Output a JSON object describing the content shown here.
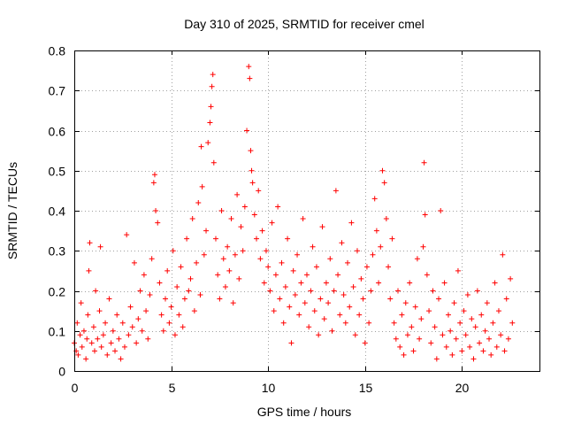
{
  "chart_data": {
    "type": "scatter",
    "title": "Day 310 of 2025, SRMTID for receiver cmel",
    "xlabel": "GPS time / hours",
    "ylabel": "SRMTID / TECUs",
    "xlim": [
      0,
      24
    ],
    "ylim": [
      0,
      0.8
    ],
    "xticks": [
      0,
      5,
      10,
      15,
      20
    ],
    "xtick_labels": [
      "0",
      "5",
      "10",
      "15",
      "20"
    ],
    "yticks": [
      0,
      0.1,
      0.2,
      0.3,
      0.4,
      0.5,
      0.6,
      0.7,
      0.8
    ],
    "ytick_labels": [
      "0",
      "0.1",
      "0.2",
      "0.3",
      "0.4",
      "0.5",
      "0.6",
      "0.7",
      "0.8"
    ],
    "grid": true,
    "marker": "plus",
    "marker_color": "#ff0000",
    "series": [
      {
        "name": "SRMTID",
        "points": [
          [
            0.0,
            0.07
          ],
          [
            0.1,
            0.05
          ],
          [
            0.15,
            0.12
          ],
          [
            0.2,
            0.04
          ],
          [
            0.3,
            0.09
          ],
          [
            0.35,
            0.17
          ],
          [
            0.4,
            0.06
          ],
          [
            0.5,
            0.1
          ],
          [
            0.6,
            0.03
          ],
          [
            0.65,
            0.08
          ],
          [
            0.7,
            0.14
          ],
          [
            0.75,
            0.25
          ],
          [
            0.8,
            0.32
          ],
          [
            0.9,
            0.07
          ],
          [
            1.0,
            0.11
          ],
          [
            1.05,
            0.05
          ],
          [
            1.1,
            0.2
          ],
          [
            1.2,
            0.08
          ],
          [
            1.3,
            0.15
          ],
          [
            1.35,
            0.31
          ],
          [
            1.4,
            0.06
          ],
          [
            1.5,
            0.09
          ],
          [
            1.6,
            0.12
          ],
          [
            1.7,
            0.04
          ],
          [
            1.8,
            0.18
          ],
          [
            1.9,
            0.07
          ],
          [
            2.0,
            0.1
          ],
          [
            2.1,
            0.05
          ],
          [
            2.2,
            0.14
          ],
          [
            2.3,
            0.08
          ],
          [
            2.4,
            0.03
          ],
          [
            2.5,
            0.12
          ],
          [
            2.6,
            0.06
          ],
          [
            2.7,
            0.34
          ],
          [
            2.8,
            0.09
          ],
          [
            2.9,
            0.16
          ],
          [
            3.0,
            0.11
          ],
          [
            3.1,
            0.27
          ],
          [
            3.2,
            0.07
          ],
          [
            3.3,
            0.13
          ],
          [
            3.4,
            0.2
          ],
          [
            3.5,
            0.1
          ],
          [
            3.6,
            0.24
          ],
          [
            3.7,
            0.15
          ],
          [
            3.8,
            0.08
          ],
          [
            3.9,
            0.19
          ],
          [
            4.0,
            0.28
          ],
          [
            4.1,
            0.47
          ],
          [
            4.15,
            0.49
          ],
          [
            4.2,
            0.4
          ],
          [
            4.3,
            0.37
          ],
          [
            4.4,
            0.22
          ],
          [
            4.5,
            0.14
          ],
          [
            4.6,
            0.1
          ],
          [
            4.7,
            0.18
          ],
          [
            4.8,
            0.25
          ],
          [
            4.9,
            0.12
          ],
          [
            5.0,
            0.16
          ],
          [
            5.1,
            0.3
          ],
          [
            5.2,
            0.09
          ],
          [
            5.3,
            0.21
          ],
          [
            5.4,
            0.14
          ],
          [
            5.5,
            0.26
          ],
          [
            5.6,
            0.11
          ],
          [
            5.7,
            0.18
          ],
          [
            5.8,
            0.33
          ],
          [
            5.9,
            0.2
          ],
          [
            6.0,
            0.23
          ],
          [
            6.1,
            0.38
          ],
          [
            6.2,
            0.15
          ],
          [
            6.3,
            0.27
          ],
          [
            6.4,
            0.42
          ],
          [
            6.5,
            0.19
          ],
          [
            6.55,
            0.56
          ],
          [
            6.6,
            0.46
          ],
          [
            6.7,
            0.29
          ],
          [
            6.8,
            0.35
          ],
          [
            6.9,
            0.57
          ],
          [
            7.0,
            0.62
          ],
          [
            7.05,
            0.66
          ],
          [
            7.1,
            0.71
          ],
          [
            7.15,
            0.74
          ],
          [
            7.2,
            0.52
          ],
          [
            7.3,
            0.33
          ],
          [
            7.4,
            0.24
          ],
          [
            7.5,
            0.18
          ],
          [
            7.6,
            0.4
          ],
          [
            7.7,
            0.28
          ],
          [
            7.8,
            0.21
          ],
          [
            7.9,
            0.31
          ],
          [
            8.0,
            0.25
          ],
          [
            8.1,
            0.38
          ],
          [
            8.2,
            0.17
          ],
          [
            8.3,
            0.29
          ],
          [
            8.4,
            0.44
          ],
          [
            8.5,
            0.23
          ],
          [
            8.6,
            0.36
          ],
          [
            8.7,
            0.3
          ],
          [
            8.8,
            0.41
          ],
          [
            8.9,
            0.6
          ],
          [
            9.0,
            0.76
          ],
          [
            9.05,
            0.73
          ],
          [
            9.1,
            0.55
          ],
          [
            9.15,
            0.5
          ],
          [
            9.2,
            0.47
          ],
          [
            9.3,
            0.39
          ],
          [
            9.4,
            0.33
          ],
          [
            9.5,
            0.45
          ],
          [
            9.6,
            0.28
          ],
          [
            9.7,
            0.35
          ],
          [
            9.8,
            0.22
          ],
          [
            9.9,
            0.3
          ],
          [
            10.0,
            0.26
          ],
          [
            10.1,
            0.2
          ],
          [
            10.2,
            0.37
          ],
          [
            10.3,
            0.15
          ],
          [
            10.4,
            0.24
          ],
          [
            10.5,
            0.41
          ],
          [
            10.6,
            0.18
          ],
          [
            10.7,
            0.27
          ],
          [
            10.8,
            0.12
          ],
          [
            10.9,
            0.21
          ],
          [
            11.0,
            0.33
          ],
          [
            11.1,
            0.16
          ],
          [
            11.2,
            0.07
          ],
          [
            11.3,
            0.25
          ],
          [
            11.4,
            0.19
          ],
          [
            11.5,
            0.29
          ],
          [
            11.6,
            0.14
          ],
          [
            11.7,
            0.22
          ],
          [
            11.8,
            0.38
          ],
          [
            11.9,
            0.17
          ],
          [
            12.0,
            0.24
          ],
          [
            12.1,
            0.11
          ],
          [
            12.2,
            0.2
          ],
          [
            12.3,
            0.31
          ],
          [
            12.4,
            0.15
          ],
          [
            12.5,
            0.26
          ],
          [
            12.6,
            0.09
          ],
          [
            12.7,
            0.18
          ],
          [
            12.8,
            0.36
          ],
          [
            12.9,
            0.13
          ],
          [
            13.0,
            0.22
          ],
          [
            13.1,
            0.17
          ],
          [
            13.2,
            0.28
          ],
          [
            13.3,
            0.1
          ],
          [
            13.4,
            0.2
          ],
          [
            13.5,
            0.45
          ],
          [
            13.6,
            0.24
          ],
          [
            13.7,
            0.14
          ],
          [
            13.8,
            0.32
          ],
          [
            13.9,
            0.19
          ],
          [
            14.0,
            0.12
          ],
          [
            14.1,
            0.27
          ],
          [
            14.2,
            0.16
          ],
          [
            14.3,
            0.37
          ],
          [
            14.4,
            0.21
          ],
          [
            14.5,
            0.09
          ],
          [
            14.6,
            0.3
          ],
          [
            14.7,
            0.14
          ],
          [
            14.8,
            0.23
          ],
          [
            14.9,
            0.18
          ],
          [
            15.0,
            0.07
          ],
          [
            15.1,
            0.26
          ],
          [
            15.2,
            0.12
          ],
          [
            15.3,
            0.2
          ],
          [
            15.4,
            0.29
          ],
          [
            15.5,
            0.43
          ],
          [
            15.6,
            0.35
          ],
          [
            15.7,
            0.22
          ],
          [
            15.8,
            0.31
          ],
          [
            15.9,
            0.5
          ],
          [
            16.0,
            0.47
          ],
          [
            16.1,
            0.38
          ],
          [
            16.2,
            0.26
          ],
          [
            16.3,
            0.18
          ],
          [
            16.4,
            0.33
          ],
          [
            16.5,
            0.12
          ],
          [
            16.6,
            0.08
          ],
          [
            16.7,
            0.2
          ],
          [
            16.8,
            0.06
          ],
          [
            16.9,
            0.14
          ],
          [
            17.0,
            0.04
          ],
          [
            17.1,
            0.17
          ],
          [
            17.2,
            0.09
          ],
          [
            17.3,
            0.22
          ],
          [
            17.4,
            0.11
          ],
          [
            17.5,
            0.05
          ],
          [
            17.6,
            0.16
          ],
          [
            17.7,
            0.28
          ],
          [
            17.8,
            0.08
          ],
          [
            17.9,
            0.13
          ],
          [
            18.0,
            0.31
          ],
          [
            18.05,
            0.52
          ],
          [
            18.1,
            0.39
          ],
          [
            18.2,
            0.24
          ],
          [
            18.3,
            0.15
          ],
          [
            18.4,
            0.07
          ],
          [
            18.5,
            0.2
          ],
          [
            18.6,
            0.11
          ],
          [
            18.7,
            0.03
          ],
          [
            18.8,
            0.18
          ],
          [
            18.9,
            0.4
          ],
          [
            19.0,
            0.09
          ],
          [
            19.1,
            0.22
          ],
          [
            19.2,
            0.06
          ],
          [
            19.3,
            0.14
          ],
          [
            19.4,
            0.1
          ],
          [
            19.5,
            0.04
          ],
          [
            19.6,
            0.17
          ],
          [
            19.7,
            0.08
          ],
          [
            19.8,
            0.25
          ],
          [
            19.9,
            0.12
          ],
          [
            20.0,
            0.05
          ],
          [
            20.1,
            0.15
          ],
          [
            20.2,
            0.09
          ],
          [
            20.3,
            0.19
          ],
          [
            20.4,
            0.06
          ],
          [
            20.5,
            0.13
          ],
          [
            20.6,
            0.03
          ],
          [
            20.7,
            0.11
          ],
          [
            20.8,
            0.2
          ],
          [
            20.9,
            0.07
          ],
          [
            21.0,
            0.14
          ],
          [
            21.1,
            0.05
          ],
          [
            21.2,
            0.1
          ],
          [
            21.3,
            0.17
          ],
          [
            21.4,
            0.08
          ],
          [
            21.5,
            0.04
          ],
          [
            21.6,
            0.12
          ],
          [
            21.7,
            0.22
          ],
          [
            21.8,
            0.06
          ],
          [
            21.9,
            0.15
          ],
          [
            22.0,
            0.09
          ],
          [
            22.1,
            0.29
          ],
          [
            22.2,
            0.05
          ],
          [
            22.3,
            0.18
          ],
          [
            22.4,
            0.08
          ],
          [
            22.5,
            0.23
          ],
          [
            22.6,
            0.12
          ]
        ]
      }
    ]
  }
}
